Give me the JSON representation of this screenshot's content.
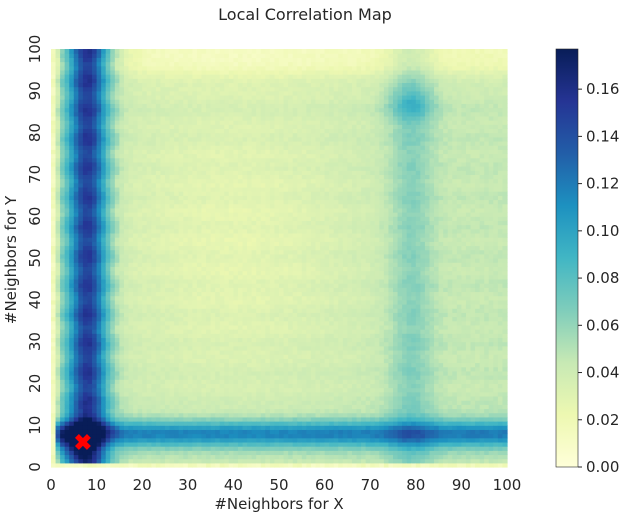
{
  "chart_data": {
    "type": "heatmap",
    "title": "Local Correlation Map",
    "xlabel": "#Neighbors for X",
    "ylabel": "#Neighbors for Y",
    "xlim": [
      0,
      100
    ],
    "ylim": [
      0,
      100
    ],
    "xticks": [
      "0",
      "10",
      "20",
      "30",
      "40",
      "50",
      "60",
      "70",
      "80",
      "90",
      "100"
    ],
    "yticks": [
      "0",
      "10",
      "20",
      "30",
      "40",
      "50",
      "60",
      "70",
      "80",
      "90",
      "100"
    ],
    "grid": false,
    "colormap": "YlGnBu",
    "colorbar": {
      "min": 0.0,
      "max": 0.177,
      "ticks": [
        "0.00",
        "0.02",
        "0.04",
        "0.06",
        "0.08",
        "0.10",
        "0.12",
        "0.14",
        "0.16"
      ]
    },
    "optimal_marker": {
      "x": 7,
      "y": 6,
      "color": "#ff0000",
      "shape": "x"
    },
    "value_profile": {
      "x_ridge_center": 8,
      "y_ridge_center": 8,
      "ridge_peak_value": 0.16,
      "secondary_x_band_center": 79,
      "secondary_y_band_center": 87,
      "background_value": 0.045,
      "top_edge_value": 0.02
    }
  }
}
